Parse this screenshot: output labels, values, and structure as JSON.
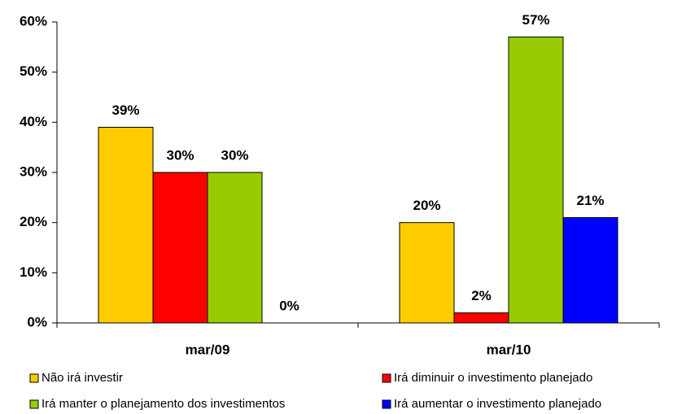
{
  "chart_data": {
    "type": "bar",
    "categories": [
      "mar/09",
      "mar/10"
    ],
    "series": [
      {
        "name": "Não irá investir",
        "color": "#ffcc00",
        "values": [
          39,
          20
        ],
        "value_labels": [
          "39%",
          "20%"
        ]
      },
      {
        "name": "Irá diminuir o investimento planejado",
        "color": "#ff0000",
        "values": [
          30,
          2
        ],
        "value_labels": [
          "30%",
          "2%"
        ]
      },
      {
        "name": "Irá manter o planejamento dos investimentos",
        "color": "#99cc00",
        "values": [
          30,
          57
        ],
        "value_labels": [
          "30%",
          "57%"
        ]
      },
      {
        "name": "Irá aumentar o investimento planejado",
        "color": "#0000ff",
        "values": [
          0,
          21
        ],
        "value_labels": [
          "0%",
          "21%"
        ]
      }
    ],
    "ylim": [
      0,
      60
    ],
    "yticks": [
      {
        "value": 0,
        "label": "0%"
      },
      {
        "value": 10,
        "label": "10%"
      },
      {
        "value": 20,
        "label": "20%"
      },
      {
        "value": 30,
        "label": "30%"
      },
      {
        "value": 40,
        "label": "40%"
      },
      {
        "value": 50,
        "label": "50%"
      },
      {
        "value": 60,
        "label": "60%"
      }
    ],
    "grid": false
  }
}
